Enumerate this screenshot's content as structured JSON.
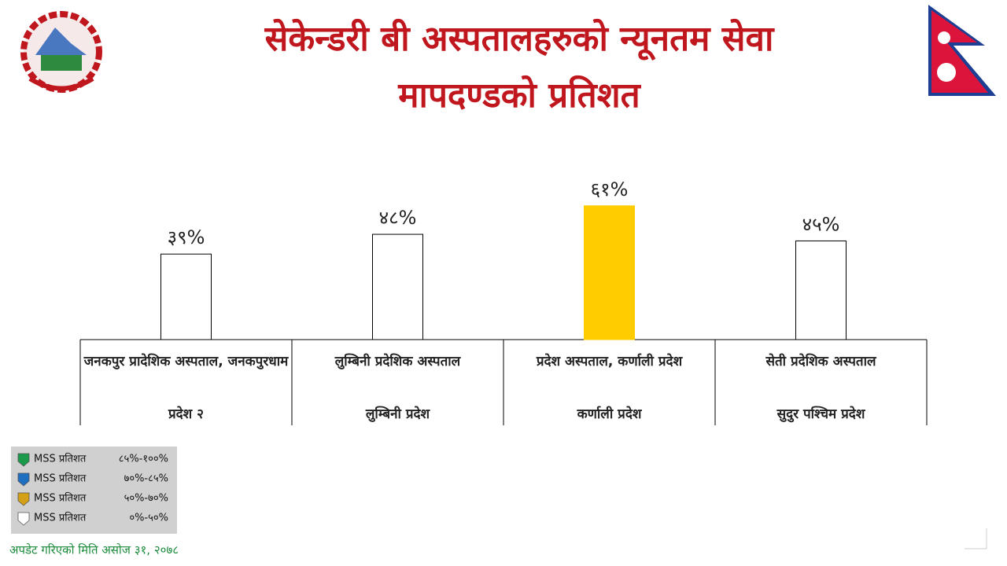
{
  "chart_data": {
    "type": "bar",
    "title": [
      "सेकेन्डरी बी अस्पतालहरुको न्यूनतम सेवा",
      "मापदण्डको प्रतिशत"
    ],
    "categories": [
      "जनकपुर प्रादेशिक अस्पताल, जनकपुरधाम",
      "लुम्बिनी प्रदेशिक अस्पताल",
      "प्रदेश अस्पताल, कर्णाली प्रदेश",
      "सेती प्रदेशिक अस्पताल"
    ],
    "groups": [
      "प्रदेश २",
      "लुम्बिनी प्रदेश",
      "कर्णाली प्रदेश",
      "सुदुर पश्चिम प्रदेश"
    ],
    "values": [
      39,
      48,
      61,
      45
    ],
    "value_labels": [
      "३९%",
      "४८%",
      "६१%",
      "४५%"
    ],
    "colors": [
      "#ffffff",
      "#ffffff",
      "#ffcc00",
      "#ffffff"
    ],
    "legend": [
      {
        "name": "MSS प्रतिशत",
        "range": "८५%-१००%",
        "color": "#1a9a4a"
      },
      {
        "name": "MSS प्रतिशत",
        "range": "७०%-८५%",
        "color": "#1f6fc0"
      },
      {
        "name": "MSS प्रतिशत",
        "range": "५०%-७०%",
        "color": "#d4a017"
      },
      {
        "name": "MSS प्रतिशत",
        "range": "०%-५०%",
        "color": "#ffffff"
      }
    ],
    "footer": "अपडेट गरिएको मिति असोज ३१, २०७८"
  }
}
